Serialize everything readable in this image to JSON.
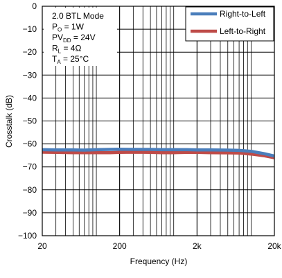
{
  "chart_data": {
    "type": "line",
    "xlabel": "Frequency (Hz)",
    "ylabel": "Crosstalk (dB)",
    "xscale": "log",
    "xlim": [
      20,
      20000
    ],
    "ylim": [
      -100,
      0
    ],
    "grid": true,
    "legend_position": "top-right",
    "x_ticks": [
      20,
      200,
      2000,
      20000
    ],
    "x_tick_labels": [
      "20",
      "200",
      "2k",
      "20k"
    ],
    "y_ticks": [
      0,
      -10,
      -20,
      -30,
      -40,
      -50,
      -60,
      -70,
      -80,
      -90,
      -100
    ],
    "y_tick_labels": [
      "0",
      "−10",
      "−20",
      "−30",
      "−40",
      "−50",
      "−60",
      "−70",
      "−80",
      "−90",
      "−100"
    ],
    "annotation": {
      "lines": [
        {
          "main": "2.0 BTL Mode",
          "sub": "",
          "rest": ""
        },
        {
          "main": "P",
          "sub": "O",
          "rest": " = 1W"
        },
        {
          "main": "PV",
          "sub": "DD",
          "rest": " = 24V"
        },
        {
          "main": "R",
          "sub": "L",
          "rest": " = 4Ω"
        },
        {
          "main": "T",
          "sub": "A",
          "rest": " = 25°C"
        }
      ]
    },
    "series": [
      {
        "name": "Right-to-Left",
        "color": "#4a7ebb",
        "x": [
          20,
          30,
          50,
          70,
          100,
          150,
          200,
          300,
          500,
          700,
          1000,
          1500,
          2000,
          3000,
          5000,
          7000,
          10000,
          15000,
          20000
        ],
        "y": [
          -62.5,
          -62.6,
          -62.6,
          -62.7,
          -62.5,
          -62.4,
          -62.3,
          -62.4,
          -62.4,
          -62.5,
          -62.5,
          -62.5,
          -62.6,
          -62.6,
          -62.7,
          -62.8,
          -63.2,
          -64.3,
          -65.3
        ]
      },
      {
        "name": "Left-to-Right",
        "color": "#be4b48",
        "x": [
          20,
          30,
          50,
          70,
          100,
          150,
          200,
          300,
          500,
          700,
          1000,
          1500,
          2000,
          3000,
          5000,
          7000,
          10000,
          15000,
          20000
        ],
        "y": [
          -63.6,
          -63.7,
          -63.8,
          -63.8,
          -63.8,
          -63.8,
          -63.7,
          -63.6,
          -63.7,
          -63.8,
          -63.8,
          -63.7,
          -63.7,
          -63.8,
          -63.9,
          -64.0,
          -64.4,
          -65.2,
          -66.0
        ]
      }
    ]
  }
}
